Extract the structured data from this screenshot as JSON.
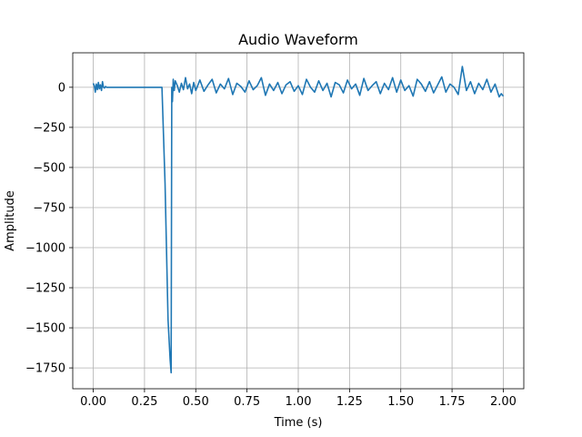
{
  "chart_data": {
    "type": "line",
    "title": "Audio Waveform",
    "xlabel": "Time (s)",
    "ylabel": "Amplitude",
    "xlim": [
      -0.1,
      2.1
    ],
    "ylim": [
      -1880,
      215
    ],
    "xticks": [
      0.0,
      0.25,
      0.5,
      0.75,
      1.0,
      1.25,
      1.5,
      1.75,
      2.0
    ],
    "xtick_labels": [
      "0.00",
      "0.25",
      "0.50",
      "0.75",
      "1.00",
      "1.25",
      "1.50",
      "1.75",
      "2.00"
    ],
    "yticks": [
      0,
      -250,
      -500,
      -750,
      -1000,
      -1250,
      -1500,
      -1750
    ],
    "ytick_labels": [
      "0",
      "−250",
      "−500",
      "−750",
      "−1000",
      "−1250",
      "−1500",
      "−1750"
    ],
    "grid": true,
    "series": [
      {
        "color": "#1f77b4",
        "x": [
          0.0,
          0.005,
          0.01,
          0.015,
          0.02,
          0.025,
          0.03,
          0.035,
          0.04,
          0.045,
          0.05,
          0.055,
          0.06,
          0.065,
          0.07,
          0.33,
          0.335,
          0.35,
          0.365,
          0.375,
          0.38,
          0.383,
          0.386,
          0.39,
          0.395,
          0.4,
          0.41,
          0.42,
          0.43,
          0.44,
          0.45,
          0.46,
          0.47,
          0.48,
          0.49,
          0.5,
          0.52,
          0.54,
          0.56,
          0.58,
          0.6,
          0.62,
          0.64,
          0.66,
          0.68,
          0.7,
          0.72,
          0.74,
          0.76,
          0.78,
          0.8,
          0.82,
          0.84,
          0.86,
          0.88,
          0.9,
          0.92,
          0.94,
          0.96,
          0.98,
          1.0,
          1.02,
          1.04,
          1.06,
          1.08,
          1.1,
          1.12,
          1.14,
          1.16,
          1.18,
          1.2,
          1.22,
          1.24,
          1.26,
          1.28,
          1.3,
          1.32,
          1.34,
          1.36,
          1.38,
          1.4,
          1.42,
          1.44,
          1.46,
          1.48,
          1.5,
          1.52,
          1.54,
          1.56,
          1.58,
          1.6,
          1.62,
          1.64,
          1.66,
          1.68,
          1.7,
          1.72,
          1.74,
          1.76,
          1.78,
          1.8,
          1.82,
          1.84,
          1.86,
          1.88,
          1.9,
          1.92,
          1.94,
          1.96,
          1.98,
          1.99,
          2.0
        ],
        "y": [
          25,
          10,
          -30,
          20,
          -15,
          30,
          -10,
          15,
          -20,
          35,
          0,
          -5,
          5,
          0,
          0,
          0,
          0,
          -600,
          -1450,
          -1700,
          -1780,
          0,
          -90,
          50,
          -20,
          40,
          10,
          -30,
          25,
          -15,
          60,
          -10,
          20,
          -40,
          30,
          -20,
          45,
          -25,
          15,
          50,
          -35,
          20,
          -10,
          55,
          -45,
          25,
          5,
          -30,
          40,
          -15,
          10,
          60,
          -50,
          20,
          -20,
          30,
          -40,
          15,
          35,
          -25,
          10,
          -45,
          50,
          0,
          -30,
          40,
          -20,
          25,
          -60,
          30,
          15,
          -35,
          45,
          -10,
          20,
          -50,
          55,
          -20,
          10,
          35,
          -40,
          25,
          -15,
          60,
          -30,
          45,
          -20,
          10,
          -55,
          50,
          20,
          -25,
          35,
          -35,
          15,
          65,
          -30,
          20,
          0,
          -45,
          130,
          -20,
          35,
          -40,
          25,
          -15,
          50,
          -30,
          20,
          -60,
          -40,
          -55
        ]
      }
    ]
  }
}
